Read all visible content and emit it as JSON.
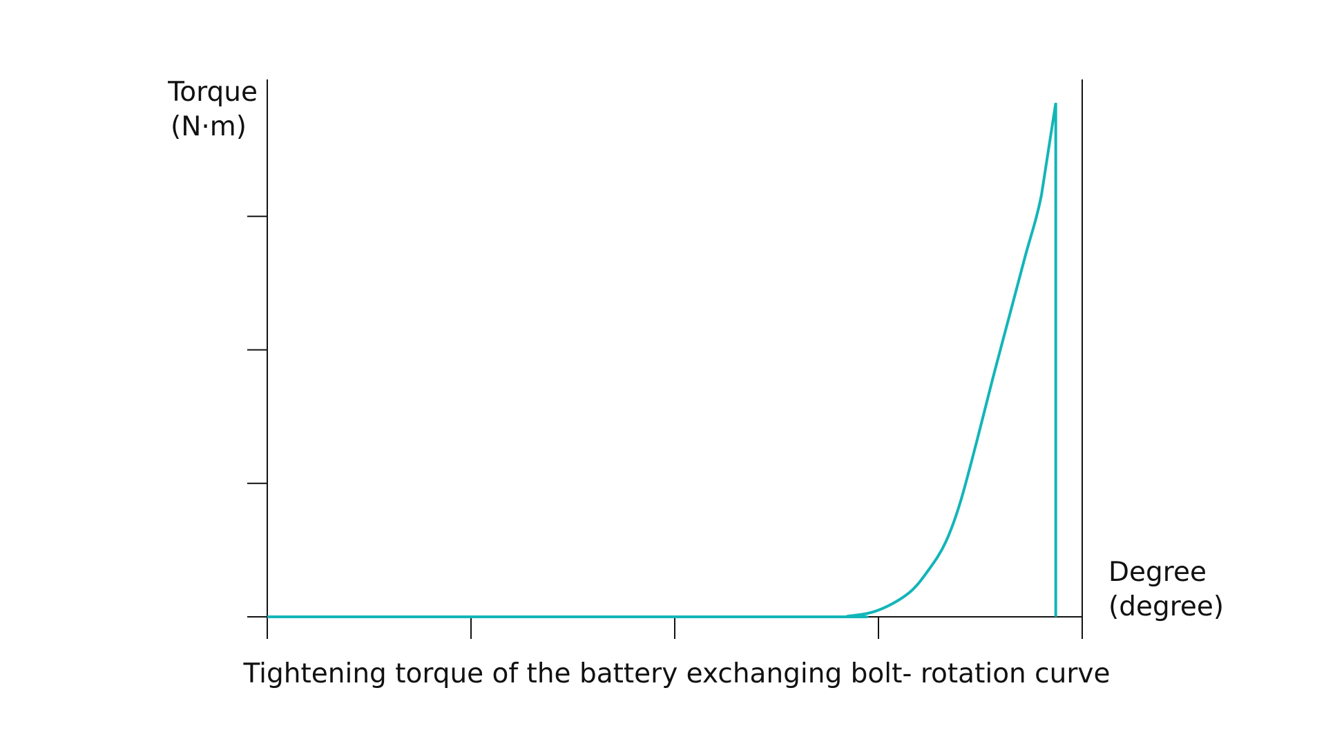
{
  "chart_data": {
    "type": "line",
    "title": "Tightening torque of the battery exchanging bolt- rotation curve",
    "ylabel": [
      "Torque",
      "(N·m)"
    ],
    "xlabel": [
      "Degree",
      "(degree)"
    ],
    "xlim": [
      0,
      4
    ],
    "ylim": [
      0,
      4
    ],
    "x_ticks": [
      0,
      1,
      2,
      3,
      4
    ],
    "y_ticks": [
      0,
      1,
      2,
      3
    ],
    "x_tick_labels": [],
    "y_tick_labels": [],
    "grid": false,
    "series": [
      {
        "color": "#12b5b8",
        "x": [
          0,
          2.7,
          2.85,
          3.0,
          3.15,
          3.25,
          3.33,
          3.4,
          3.48,
          3.56,
          3.64,
          3.72,
          3.8,
          3.87,
          3.87
        ],
        "y": [
          0,
          0,
          0.005,
          0.05,
          0.18,
          0.36,
          0.56,
          0.85,
          1.3,
          1.78,
          2.24,
          2.7,
          3.16,
          3.85,
          0
        ]
      }
    ],
    "colors": {
      "axis": "#111111",
      "curve": "#12b5b8"
    }
  }
}
